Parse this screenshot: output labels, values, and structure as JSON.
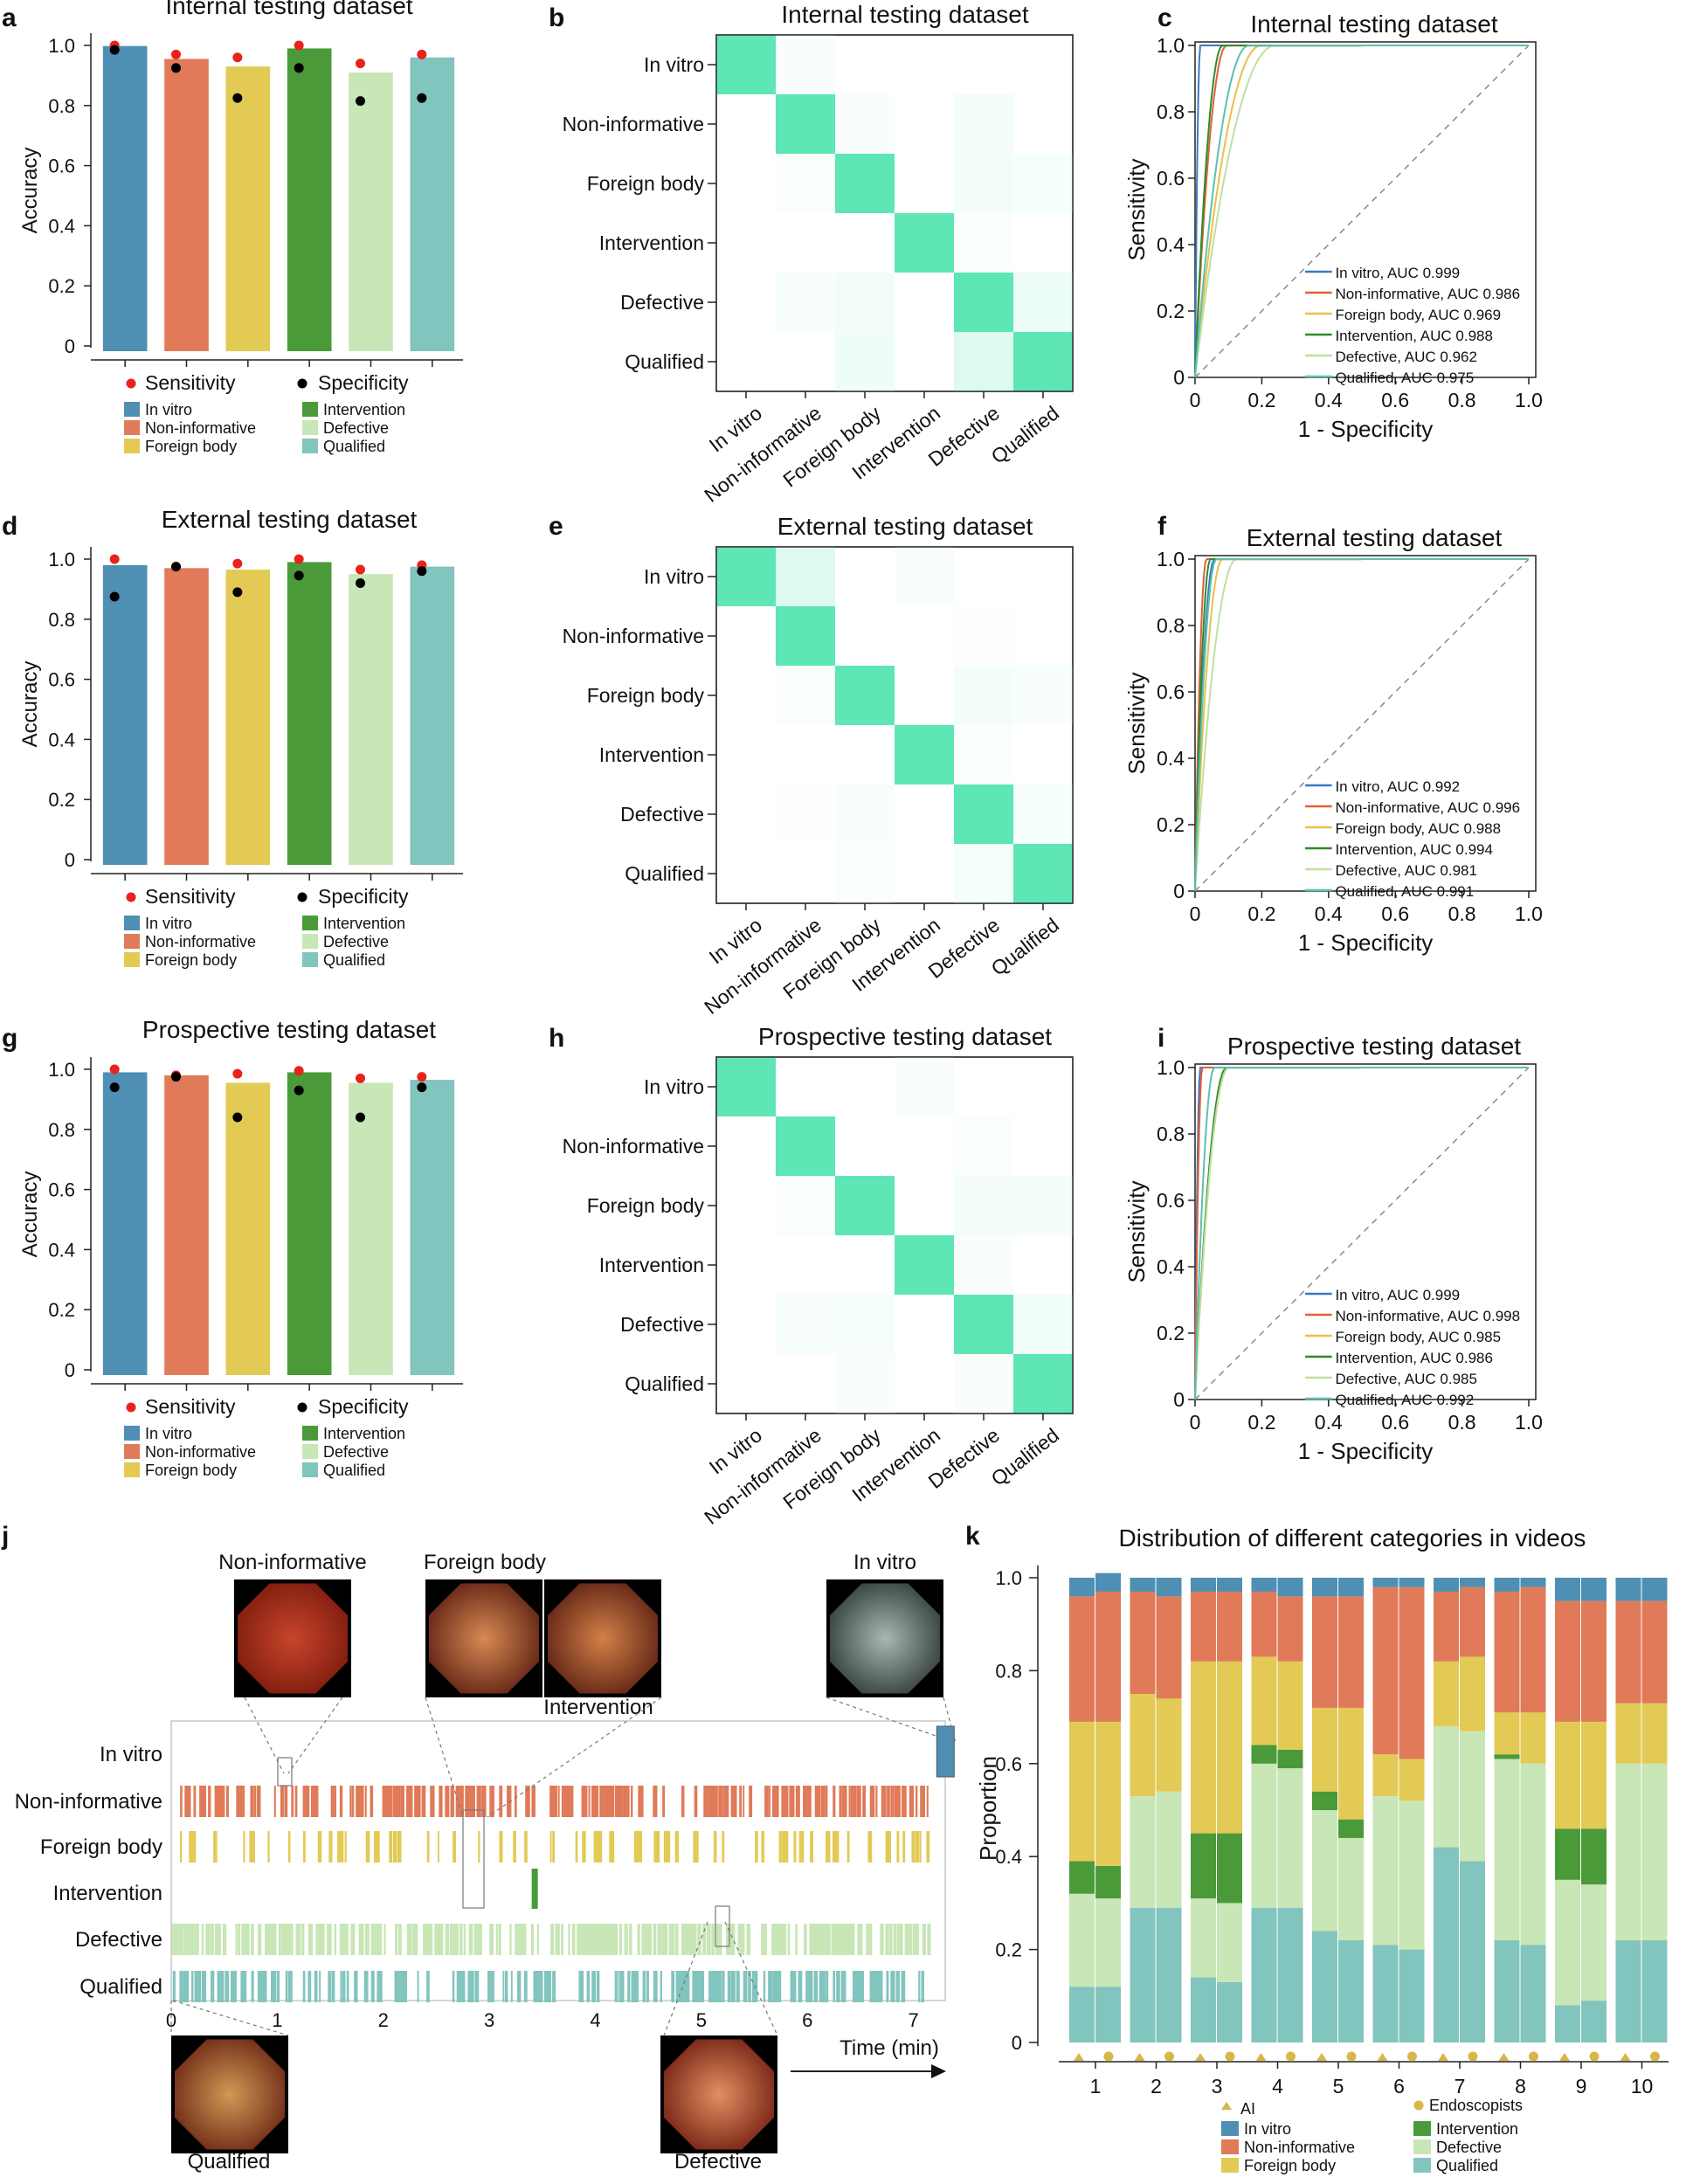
{
  "colors": {
    "in_vitro": "#4e8fb3",
    "non_informative": "#e07a58",
    "foreign_body": "#e2ca55",
    "intervention": "#4a9a3a",
    "defective": "#c8e6b6",
    "qualified": "#82c4be",
    "sensitivity": "#e8231c",
    "specificity": "#000000",
    "cm_max": "#5ee6b4"
  },
  "panel_letters": [
    "a",
    "b",
    "c",
    "d",
    "e",
    "f",
    "g",
    "h",
    "i",
    "j",
    "k"
  ],
  "categories": [
    "In vitro",
    "Non-informative",
    "Foreign body",
    "Intervention",
    "Defective",
    "Qualified"
  ],
  "legend": {
    "sensitivity": "Sensitivity",
    "specificity": "Specificity",
    "items": [
      "In vitro",
      "Non-informative",
      "Foreign body",
      "Intervention",
      "Defective",
      "Qualified"
    ]
  },
  "chart_data": [
    {
      "panel": "a",
      "type": "bar",
      "title": "Internal testing dataset",
      "ylabel": "Accuracy",
      "ylim": [
        0,
        1
      ],
      "yticks": [
        "0",
        "0.2",
        "0.4",
        "0.6",
        "0.8",
        "1.0"
      ],
      "categories": [
        "In vitro",
        "Non-informative",
        "Foreign body",
        "Intervention",
        "Defective",
        "Qualified"
      ],
      "values": [
        0.998,
        0.955,
        0.93,
        0.99,
        0.91,
        0.96
      ],
      "sensitivity": [
        1.0,
        0.97,
        0.96,
        1.0,
        0.94,
        0.97
      ],
      "specificity": [
        0.985,
        0.925,
        0.825,
        0.925,
        0.815,
        0.825
      ]
    },
    {
      "panel": "d",
      "type": "bar",
      "title": "External testing dataset",
      "ylabel": "Accuracy",
      "ylim": [
        0,
        1
      ],
      "yticks": [
        "0",
        "0.2",
        "0.4",
        "0.6",
        "0.8",
        "1.0"
      ],
      "categories": [
        "In vitro",
        "Non-informative",
        "Foreign body",
        "Intervention",
        "Defective",
        "Qualified"
      ],
      "values": [
        0.98,
        0.97,
        0.965,
        0.99,
        0.95,
        0.975
      ],
      "sensitivity": [
        1.0,
        0.975,
        0.985,
        1.0,
        0.965,
        0.98
      ],
      "specificity": [
        0.875,
        0.975,
        0.89,
        0.945,
        0.92,
        0.96
      ]
    },
    {
      "panel": "g",
      "type": "bar",
      "title": "Prospective testing dataset",
      "ylabel": "Accuracy",
      "ylim": [
        0,
        1
      ],
      "yticks": [
        "0",
        "0.2",
        "0.4",
        "0.6",
        "0.8",
        "1.0"
      ],
      "categories": [
        "In vitro",
        "Non-informative",
        "Foreign body",
        "Intervention",
        "Defective",
        "Qualified"
      ],
      "values": [
        0.99,
        0.98,
        0.955,
        0.99,
        0.955,
        0.965
      ],
      "sensitivity": [
        1.0,
        0.98,
        0.985,
        0.995,
        0.97,
        0.975
      ],
      "specificity": [
        0.94,
        0.975,
        0.84,
        0.93,
        0.84,
        0.94
      ]
    },
    {
      "panel": "b",
      "type": "heatmap",
      "title": "Internal testing dataset",
      "labels": [
        "In vitro",
        "Non-informative",
        "Foreign body",
        "Intervention",
        "Defective",
        "Qualified"
      ],
      "matrix": [
        [
          1.0,
          0.04,
          0,
          0,
          0,
          0
        ],
        [
          0,
          1.0,
          0.04,
          0,
          0.07,
          0
        ],
        [
          0,
          0.03,
          1.0,
          0,
          0.08,
          0.06
        ],
        [
          0,
          0,
          0,
          1.0,
          0.03,
          0
        ],
        [
          0,
          0.05,
          0.08,
          0,
          1.0,
          0.12
        ],
        [
          0,
          0,
          0.1,
          0,
          0.22,
          1.0
        ]
      ]
    },
    {
      "panel": "e",
      "type": "heatmap",
      "title": "External testing dataset",
      "labels": [
        "In vitro",
        "Non-informative",
        "Foreign body",
        "Intervention",
        "Defective",
        "Qualified"
      ],
      "matrix": [
        [
          1.0,
          0.2,
          0,
          0.04,
          0,
          0
        ],
        [
          0,
          1.0,
          0,
          0,
          0.02,
          0
        ],
        [
          0,
          0.03,
          1.0,
          0,
          0.07,
          0.05
        ],
        [
          0,
          0,
          0,
          1.0,
          0.03,
          0
        ],
        [
          0,
          0.02,
          0.05,
          0,
          1.0,
          0.06
        ],
        [
          0,
          0,
          0.03,
          0,
          0.06,
          1.0
        ]
      ]
    },
    {
      "panel": "h",
      "type": "heatmap",
      "title": "Prospective testing dataset",
      "labels": [
        "In vitro",
        "Non-informative",
        "Foreign body",
        "Intervention",
        "Defective",
        "Qualified"
      ],
      "matrix": [
        [
          1.0,
          0,
          0,
          0.04,
          0,
          0
        ],
        [
          0,
          1.0,
          0,
          0,
          0.03,
          0
        ],
        [
          0,
          0.03,
          1.0,
          0,
          0.07,
          0.07
        ],
        [
          0,
          0,
          0,
          1.0,
          0.04,
          0
        ],
        [
          0,
          0.05,
          0.06,
          0,
          1.0,
          0.09
        ],
        [
          0,
          0,
          0.04,
          0,
          0.04,
          1.0
        ]
      ]
    },
    {
      "panel": "c",
      "type": "line",
      "title": "Internal testing dataset",
      "xlabel": "1 - Specificity",
      "ylabel": "Sensitivity",
      "ticks": [
        "0",
        "0.2",
        "0.4",
        "0.6",
        "0.8",
        "1.0"
      ],
      "series": [
        {
          "name": "In vitro",
          "auc_label": "In vitro, AUC 0.999",
          "auc": 0.999
        },
        {
          "name": "Non-informative",
          "auc_label": "Non-informative, AUC 0.986",
          "auc": 0.986
        },
        {
          "name": "Foreign body",
          "auc_label": "Foreign body, AUC 0.969",
          "auc": 0.969
        },
        {
          "name": "Intervention",
          "auc_label": "Intervention, AUC 0.988",
          "auc": 0.988
        },
        {
          "name": "Defective",
          "auc_label": "Defective, AUC 0.962",
          "auc": 0.962
        },
        {
          "name": "Qualified",
          "auc_label": "Qualified, AUC 0.975",
          "auc": 0.975
        }
      ]
    },
    {
      "panel": "f",
      "type": "line",
      "title": "External testing dataset",
      "xlabel": "1 - Specificity",
      "ylabel": "Sensitivity",
      "ticks": [
        "0",
        "0.2",
        "0.4",
        "0.6",
        "0.8",
        "1.0"
      ],
      "series": [
        {
          "name": "In vitro",
          "auc_label": "In vitro, AUC 0.992",
          "auc": 0.992
        },
        {
          "name": "Non-informative",
          "auc_label": "Non-informative, AUC 0.996",
          "auc": 0.996
        },
        {
          "name": "Foreign body",
          "auc_label": "Foreign body, AUC 0.988",
          "auc": 0.988
        },
        {
          "name": "Intervention",
          "auc_label": "Intervention, AUC 0.994",
          "auc": 0.994
        },
        {
          "name": "Defective",
          "auc_label": "Defective, AUC 0.981",
          "auc": 0.981
        },
        {
          "name": "Qualified",
          "auc_label": "Qualified, AUC 0.991",
          "auc": 0.991
        }
      ]
    },
    {
      "panel": "i",
      "type": "line",
      "title": "Prospective testing dataset",
      "xlabel": "1 - Specificity",
      "ylabel": "Sensitivity",
      "ticks": [
        "0",
        "0.2",
        "0.4",
        "0.6",
        "0.8",
        "1.0"
      ],
      "series": [
        {
          "name": "In vitro",
          "auc_label": "In vitro, AUC 0.999",
          "auc": 0.999
        },
        {
          "name": "Non-informative",
          "auc_label": "Non-informative, AUC 0.998",
          "auc": 0.998
        },
        {
          "name": "Foreign body",
          "auc_label": "Foreign body, AUC 0.985",
          "auc": 0.985
        },
        {
          "name": "Intervention",
          "auc_label": "Intervention, AUC 0.986",
          "auc": 0.986
        },
        {
          "name": "Defective",
          "auc_label": "Defective, AUC 0.985",
          "auc": 0.985
        },
        {
          "name": "Qualified",
          "auc_label": "Qualified, AUC 0.992",
          "auc": 0.992
        }
      ]
    },
    {
      "panel": "j",
      "type": "timeline",
      "xlabel": "Time (min)",
      "xticks": [
        "0",
        "1",
        "2",
        "3",
        "4",
        "5",
        "6",
        "7"
      ],
      "xlim": [
        0,
        7.3
      ],
      "rows": [
        "In vitro",
        "Non-informative",
        "Foreign body",
        "Intervention",
        "Defective",
        "Qualified"
      ],
      "thumbnails": [
        "Non-informative",
        "Foreign body",
        "Intervention",
        "In vitro",
        "Qualified",
        "Defective"
      ]
    },
    {
      "panel": "k",
      "type": "bar",
      "stacked": true,
      "title": "Distribution of different categories in videos",
      "ylabel": "Proportion",
      "ylim": [
        0,
        1
      ],
      "yticks": [
        "0",
        "0.2",
        "0.4",
        "0.6",
        "0.8",
        "1.0"
      ],
      "categories": [
        "1",
        "2",
        "3",
        "4",
        "5",
        "6",
        "7",
        "8",
        "9",
        "10"
      ],
      "sources": [
        "AI",
        "Endoscopists"
      ],
      "series_order": [
        "Qualified",
        "Defective",
        "Intervention",
        "Foreign body",
        "Non-informative",
        "In vitro"
      ],
      "bars": [
        {
          "video": "1",
          "AI": [
            0.12,
            0.2,
            0.07,
            0.3,
            0.27,
            0.04
          ],
          "Endoscopists": [
            0.12,
            0.19,
            0.07,
            0.31,
            0.28,
            0.04
          ]
        },
        {
          "video": "2",
          "AI": [
            0.29,
            0.24,
            0.0,
            0.22,
            0.22,
            0.03
          ],
          "Endoscopists": [
            0.29,
            0.25,
            0.0,
            0.2,
            0.22,
            0.04
          ]
        },
        {
          "video": "3",
          "AI": [
            0.14,
            0.17,
            0.14,
            0.37,
            0.15,
            0.03
          ],
          "Endoscopists": [
            0.13,
            0.17,
            0.15,
            0.37,
            0.15,
            0.03
          ]
        },
        {
          "video": "4",
          "AI": [
            0.29,
            0.31,
            0.04,
            0.19,
            0.14,
            0.03
          ],
          "Endoscopists": [
            0.29,
            0.3,
            0.04,
            0.19,
            0.14,
            0.04
          ]
        },
        {
          "video": "5",
          "AI": [
            0.24,
            0.26,
            0.04,
            0.18,
            0.24,
            0.04
          ],
          "Endoscopists": [
            0.22,
            0.22,
            0.04,
            0.24,
            0.24,
            0.04
          ]
        },
        {
          "video": "6",
          "AI": [
            0.21,
            0.32,
            0.0,
            0.09,
            0.36,
            0.02
          ],
          "Endoscopists": [
            0.2,
            0.32,
            0.0,
            0.09,
            0.37,
            0.02
          ]
        },
        {
          "video": "7",
          "AI": [
            0.42,
            0.26,
            0.0,
            0.14,
            0.15,
            0.03
          ],
          "Endoscopists": [
            0.39,
            0.28,
            0.0,
            0.16,
            0.15,
            0.02
          ]
        },
        {
          "video": "8",
          "AI": [
            0.22,
            0.39,
            0.01,
            0.09,
            0.26,
            0.03
          ],
          "Endoscopists": [
            0.21,
            0.39,
            0.0,
            0.11,
            0.27,
            0.02
          ]
        },
        {
          "video": "9",
          "AI": [
            0.08,
            0.27,
            0.11,
            0.23,
            0.26,
            0.05
          ],
          "Endoscopists": [
            0.09,
            0.25,
            0.12,
            0.23,
            0.26,
            0.05
          ]
        },
        {
          "video": "10",
          "AI": [
            0.22,
            0.38,
            0.0,
            0.13,
            0.22,
            0.05
          ],
          "Endoscopists": [
            0.22,
            0.38,
            0.0,
            0.13,
            0.22,
            0.05
          ]
        }
      ]
    }
  ]
}
